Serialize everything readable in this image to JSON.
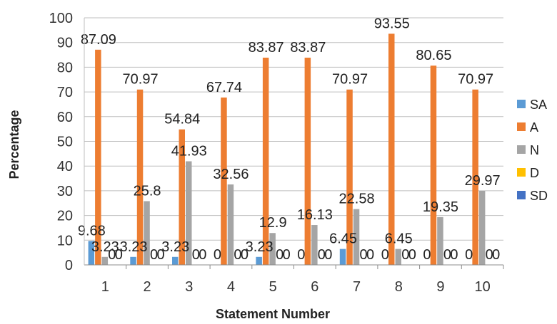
{
  "chart_data": {
    "type": "bar",
    "title": "",
    "xlabel": "Statement Number",
    "ylabel": "Percentage",
    "ylim": [
      0,
      100
    ],
    "yticks": [
      0,
      10,
      20,
      30,
      40,
      50,
      60,
      70,
      80,
      90,
      100
    ],
    "grid": true,
    "legend_position": "right",
    "categories": [
      "1",
      "2",
      "3",
      "4",
      "5",
      "6",
      "7",
      "8",
      "9",
      "10"
    ],
    "series": [
      {
        "name": "SA",
        "color": "#5B9BD5",
        "values": [
          9.68,
          3.23,
          3.23,
          0,
          3.23,
          0,
          6.45,
          0,
          0,
          0
        ],
        "labels": [
          "9.68",
          "3.23",
          "3.23",
          "0",
          "3.23",
          "0",
          "6.45",
          "0",
          "0",
          "0"
        ]
      },
      {
        "name": "A",
        "color": "#ED7D31",
        "values": [
          87.09,
          70.97,
          54.84,
          67.74,
          83.87,
          83.87,
          70.97,
          93.55,
          80.65,
          70.97
        ],
        "labels": [
          "87.09",
          "70.97",
          "54.84",
          "67.74",
          "83.87",
          "83.87",
          "70.97",
          "93.55",
          "80.65",
          "70.97"
        ]
      },
      {
        "name": "N",
        "color": "#A5A5A5",
        "values": [
          3.23,
          25.8,
          41.93,
          32.56,
          12.9,
          16.13,
          22.58,
          6.45,
          19.35,
          29.97
        ],
        "labels": [
          "3.23",
          "25.8",
          "41.93",
          "32.56",
          "12.9",
          "16.13",
          "22.58",
          "6.45",
          "19.35",
          "29.97"
        ]
      },
      {
        "name": "D",
        "color": "#FFC000",
        "values": [
          0,
          0,
          0,
          0,
          0,
          0,
          0,
          0,
          0,
          0
        ],
        "labels": [
          "0",
          "0",
          "0",
          "0",
          "0",
          "0",
          "0",
          "0",
          "0",
          "0"
        ]
      },
      {
        "name": "SD",
        "color": "#4472C4",
        "values": [
          0,
          0,
          0,
          0,
          0,
          0,
          0,
          0,
          0,
          0
        ],
        "labels": [
          "0",
          "0",
          "0",
          "0",
          "0",
          "0",
          "0",
          "0",
          "0",
          "0"
        ]
      }
    ]
  }
}
